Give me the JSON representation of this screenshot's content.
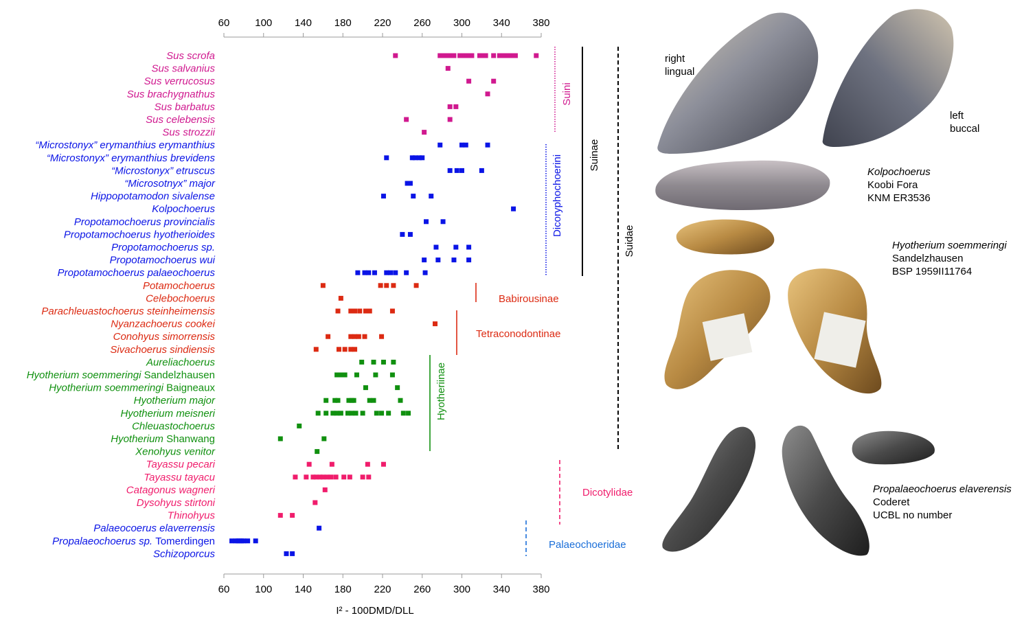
{
  "chart_data": {
    "type": "scatter",
    "xlabel": "I² - 100DMD/DLL",
    "xlim": [
      60,
      380
    ],
    "xticks": [
      60,
      100,
      140,
      180,
      220,
      260,
      300,
      340,
      380
    ],
    "rows": [
      {
        "label": "Sus scrofa",
        "color": "#d0198f",
        "values": [
          233,
          278,
          282,
          286,
          290,
          292,
          298,
          300,
          303,
          305,
          308,
          310,
          318,
          320,
          324,
          332,
          338,
          342,
          344,
          346,
          349,
          352,
          354,
          375
        ]
      },
      {
        "label": "Sus salvanius",
        "color": "#d0198f",
        "values": [
          286
        ]
      },
      {
        "label": "Sus verrucosus",
        "color": "#d0198f",
        "values": [
          307,
          332
        ]
      },
      {
        "label": "Sus brachygnathus",
        "color": "#d0198f",
        "values": [
          326
        ]
      },
      {
        "label": "Sus barbatus",
        "color": "#d0198f",
        "values": [
          288,
          294
        ]
      },
      {
        "label": "Sus celebensis",
        "color": "#d0198f",
        "values": [
          244,
          288
        ]
      },
      {
        "label": "Sus strozzii",
        "color": "#d0198f",
        "values": [
          262
        ]
      },
      {
        "label": "“Microstonyx” erymanthius erymanthius",
        "color": "#0a14e6",
        "values": [
          278,
          300,
          304,
          326
        ]
      },
      {
        "label": "“Microstonyx” erymanthius brevidens",
        "color": "#0a14e6",
        "values": [
          224,
          250,
          253,
          257,
          260
        ]
      },
      {
        "label": "“Microstonyx” etruscus",
        "color": "#0a14e6",
        "values": [
          288,
          295,
          300,
          320
        ]
      },
      {
        "label": "“Microsotnyx” major",
        "color": "#0a14e6",
        "values": [
          245,
          248
        ]
      },
      {
        "label": "Hippopotamodon sivalense",
        "color": "#0a14e6",
        "values": [
          221,
          251,
          269
        ]
      },
      {
        "label": "Kolpochoerus",
        "color": "#0a14e6",
        "values": [
          352
        ]
      },
      {
        "label": "Propotamochoerus provincialis",
        "color": "#0a14e6",
        "values": [
          264,
          281
        ]
      },
      {
        "label": "Propotamochoerus hyotherioides",
        "color": "#0a14e6",
        "values": [
          240,
          248
        ]
      },
      {
        "label": "Propotamochoerus sp.",
        "color": "#0a14e6",
        "values": [
          274,
          294,
          307
        ]
      },
      {
        "label": "Propotamochoerus wui",
        "color": "#0a14e6",
        "values": [
          262,
          276,
          292,
          307
        ]
      },
      {
        "label": "Propotamochoerus palaeochoerus",
        "color": "#0a14e6",
        "values": [
          195,
          202,
          206,
          212,
          224,
          228,
          233,
          244,
          263
        ]
      },
      {
        "label": "Potamochoerus",
        "color": "#dc2a12",
        "values": [
          160,
          218,
          224,
          231,
          254
        ]
      },
      {
        "label": "Celebochoerus",
        "color": "#dc2a12",
        "values": [
          178
        ]
      },
      {
        "label": "Parachleuastochoerus steinheimensis",
        "color": "#dc2a12",
        "values": [
          175,
          188,
          192,
          197,
          203,
          207,
          230
        ]
      },
      {
        "label": "Nyanzachoerus cookei",
        "color": "#dc2a12",
        "values": [
          273
        ]
      },
      {
        "label": "Conohyus simorrensis",
        "color": "#dc2a12",
        "values": [
          165,
          188,
          192,
          196,
          202,
          219
        ]
      },
      {
        "label": "Sivachoerus sindiensis",
        "color": "#dc2a12",
        "values": [
          153,
          176,
          182,
          188,
          192
        ]
      },
      {
        "label": "Aureliachoerus",
        "color": "#10900f",
        "values": [
          199,
          211,
          221,
          231
        ]
      },
      {
        "label": "Hyotherium soemmeringi Sandelzhausen",
        "color": "#10900f",
        "values": [
          174,
          178,
          182,
          194,
          213,
          230
        ]
      },
      {
        "label": "Hyotherium soemmeringi Baigneaux",
        "color": "#10900f",
        "values": [
          203,
          235
        ]
      },
      {
        "label": "Hyotherium major",
        "color": "#10900f",
        "values": [
          163,
          172,
          175,
          186,
          189,
          191,
          207,
          211,
          238
        ]
      },
      {
        "label": "Hyotherium meisneri",
        "color": "#10900f",
        "values": [
          155,
          163,
          170,
          174,
          178,
          185,
          189,
          193,
          200,
          214,
          219,
          226,
          241,
          246
        ]
      },
      {
        "label": "Chleuastochoerus",
        "color": "#10900f",
        "values": [
          136
        ]
      },
      {
        "label": "Hyotherium Shanwang",
        "color": "#10900f",
        "values": [
          117,
          161
        ]
      },
      {
        "label": "Xenohyus venitor",
        "color": "#10900f",
        "values": [
          154
        ]
      },
      {
        "label": "Tayassu pecari",
        "color": "#f01d6c",
        "values": [
          146,
          169,
          205,
          221
        ]
      },
      {
        "label": "Tayassu tayacu",
        "color": "#f01d6c",
        "values": [
          132,
          143,
          150,
          153,
          157,
          160,
          164,
          168,
          173,
          181,
          187,
          200,
          206
        ]
      },
      {
        "label": "Catagonus wagneri",
        "color": "#f01d6c",
        "values": [
          162
        ]
      },
      {
        "label": "Dysohyus stirtoni",
        "color": "#f01d6c",
        "values": [
          152
        ]
      },
      {
        "label": "Thinohyus",
        "color": "#f01d6c",
        "values": [
          117,
          129
        ]
      },
      {
        "label": "Palaeocoerus elaverrensis",
        "color": "#0a14e6",
        "values": [
          156
        ]
      },
      {
        "label": "Propalaeochoerus sp. Tomerdingen",
        "color": "#0a14e6",
        "values": [
          68,
          72,
          74,
          76,
          78,
          80,
          84,
          92
        ]
      },
      {
        "label": "Schizoporcus",
        "color": "#0a14e6",
        "values": [
          123,
          129
        ]
      }
    ],
    "groups": [
      {
        "label": "Suini",
        "color": "#d0198f",
        "style": "dotted",
        "orientation": "vertical",
        "from_row": 0,
        "to_row": 6
      },
      {
        "label": "Dicoryphochoerini",
        "color": "#0a14e6",
        "style": "dotted",
        "orientation": "vertical",
        "from_row": 7,
        "to_row": 17
      },
      {
        "label": "Suinae",
        "color": "#000000",
        "style": "solid",
        "orientation": "vertical",
        "from_row": 0,
        "to_row": 17
      },
      {
        "label": "Suidae",
        "color": "#000000",
        "style": "dashed",
        "orientation": "vertical",
        "from_row": 0,
        "to_row": 31
      },
      {
        "label": "Babirousinae",
        "color": "#dc2a12",
        "style": "solid",
        "orientation": "horizontal",
        "from_row": 18,
        "to_row": 19
      },
      {
        "label": "Tetraconodontinae",
        "color": "#dc2a12",
        "style": "solid",
        "orientation": "horizontal",
        "from_row": 20,
        "to_row": 23
      },
      {
        "label": "Hyotheriinae",
        "color": "#10900f",
        "style": "solid",
        "orientation": "vertical",
        "from_row": 24,
        "to_row": 31
      },
      {
        "label": "Dicotylidae",
        "color": "#f01d6c",
        "style": "dashed",
        "orientation": "horizontal",
        "from_row": 32,
        "to_row": 36
      },
      {
        "label": "Palaeochoeridae",
        "color": "#1a6ed8",
        "style": "dashed",
        "orientation": "horizontal",
        "from_row": 37,
        "to_row": 39
      }
    ]
  },
  "photos": {
    "kolpochoerus": {
      "view_1": "right",
      "view_2": "lingual",
      "view_3": "left",
      "view_4": "buccal",
      "taxon": "Kolpochoerus",
      "locality": "Koobi Fora",
      "specimen": "KNM ER3536"
    },
    "hyotherium": {
      "taxon": "Hyotherium soemmeringi",
      "locality": "Sandelzhausen",
      "specimen": "BSP 1959II11764"
    },
    "propalaeochoerus": {
      "taxon": "Propalaeochoerus elaverensis",
      "locality": "Coderet",
      "specimen": "UCBL no number"
    }
  }
}
